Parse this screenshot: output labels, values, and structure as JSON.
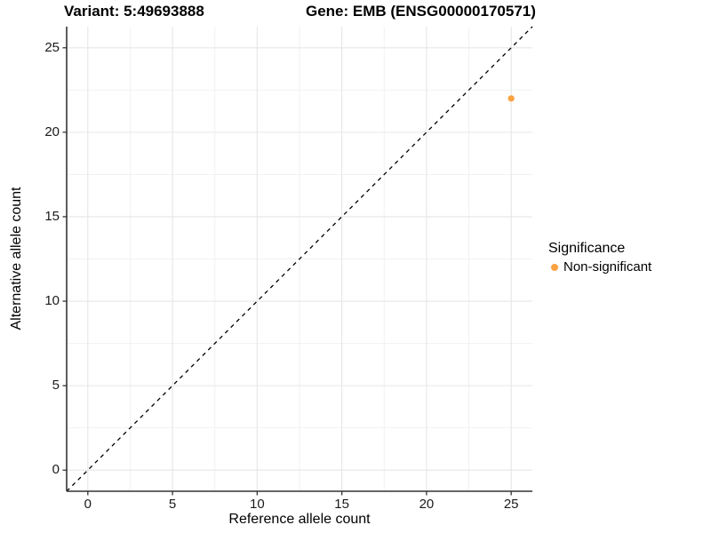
{
  "chart_data": {
    "type": "scatter",
    "title_variant": "Variant: 5:49693888",
    "title_gene": "Gene: EMB (ENSG00000170571)",
    "xlabel": "Reference allele count",
    "ylabel": "Alternative allele count",
    "x_ticks": [
      0,
      5,
      10,
      15,
      20,
      25
    ],
    "y_ticks": [
      0,
      5,
      10,
      15,
      20,
      25
    ],
    "minor_ticks": [
      2.5,
      7.5,
      12.5,
      17.5,
      22.5
    ],
    "xlim": [
      -1.25,
      26.25
    ],
    "ylim": [
      -1.25,
      26.25
    ],
    "grid": "major+minor",
    "identity_line": {
      "style": "dashed",
      "color": "#000000",
      "from": [
        -1.25,
        -1.25
      ],
      "to": [
        26.25,
        26.25
      ]
    },
    "points": [
      {
        "x": 25,
        "y": 22,
        "series": "Non-significant"
      }
    ],
    "legend": {
      "title": "Significance",
      "position": "right",
      "items": [
        {
          "label": "Non-significant",
          "color": "#F9A242"
        }
      ]
    },
    "colors": {
      "point": "#F9A242",
      "grid_major": "#E6E6E6",
      "grid_minor": "#F1F1F1",
      "axis": "#333333",
      "tick_text": "#1a1a1a"
    }
  }
}
